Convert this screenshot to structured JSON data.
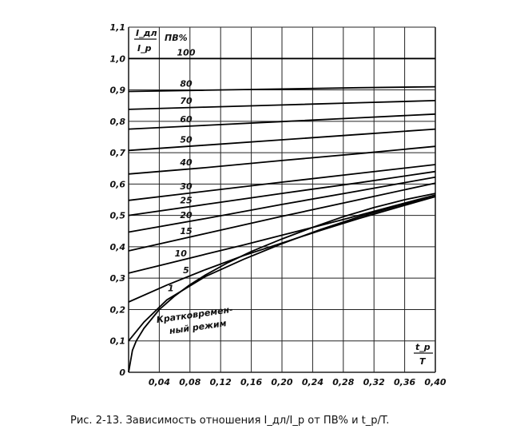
{
  "chart_data": {
    "type": "line",
    "caption": "Рис. 2-13. Зависимость отношения I_дл/I_р от ПВ% и t_р/T.",
    "ylabel": {
      "num": "I_дл",
      "den": "I_р"
    },
    "xlabel": {
      "num": "t_р",
      "den": "T"
    },
    "legend_title": "ПВ%",
    "xlim": [
      0,
      0.4
    ],
    "ylim": [
      0,
      1.1
    ],
    "xticks": [
      "0",
      "0,04",
      "0,08",
      "0,12",
      "0,16",
      "0,20",
      "0,24",
      "0,28",
      "0,32",
      "0,36",
      "0,40"
    ],
    "yticks": [
      "0",
      "0,1",
      "0,2",
      "0,3",
      "0,4",
      "0,5",
      "0,6",
      "0,7",
      "0,8",
      "0,9",
      "1,0",
      "1,1"
    ],
    "grid": true,
    "annotation": [
      "Кратковремен-",
      "ный режим"
    ],
    "series": [
      {
        "name": "100",
        "x": [
          0,
          0.4
        ],
        "y": [
          1.0,
          1.0
        ]
      },
      {
        "name": "80",
        "x": [
          0,
          0.1,
          0.2,
          0.3,
          0.4
        ],
        "y": [
          0.895,
          0.899,
          0.903,
          0.907,
          0.91
        ]
      },
      {
        "name": "70",
        "x": [
          0,
          0.1,
          0.2,
          0.3,
          0.4
        ],
        "y": [
          0.838,
          0.845,
          0.852,
          0.859,
          0.866
        ]
      },
      {
        "name": "60",
        "x": [
          0,
          0.1,
          0.2,
          0.3,
          0.4
        ],
        "y": [
          0.775,
          0.787,
          0.799,
          0.811,
          0.823
        ]
      },
      {
        "name": "50",
        "x": [
          0,
          0.1,
          0.2,
          0.3,
          0.4
        ],
        "y": [
          0.707,
          0.724,
          0.741,
          0.758,
          0.775
        ]
      },
      {
        "name": "40",
        "x": [
          0,
          0.1,
          0.2,
          0.3,
          0.4
        ],
        "y": [
          0.632,
          0.652,
          0.675,
          0.697,
          0.72
        ]
      },
      {
        "name": "30",
        "x": [
          0,
          0.1,
          0.2,
          0.3,
          0.4
        ],
        "y": [
          0.548,
          0.577,
          0.606,
          0.634,
          0.662
        ]
      },
      {
        "name": "25",
        "x": [
          0,
          0.1,
          0.2,
          0.3,
          0.4
        ],
        "y": [
          0.5,
          0.535,
          0.57,
          0.604,
          0.64
        ]
      },
      {
        "name": "20",
        "x": [
          0,
          0.1,
          0.2,
          0.3,
          0.4
        ],
        "y": [
          0.447,
          0.49,
          0.535,
          0.578,
          0.622
        ]
      },
      {
        "name": "15",
        "x": [
          0,
          0.1,
          0.2,
          0.3,
          0.4
        ],
        "y": [
          0.387,
          0.442,
          0.497,
          0.55,
          0.603
        ]
      },
      {
        "name": "10",
        "x": [
          0,
          0.05,
          0.1,
          0.15,
          0.2,
          0.25,
          0.3,
          0.35,
          0.4
        ],
        "y": [
          0.316,
          0.346,
          0.376,
          0.406,
          0.437,
          0.468,
          0.5,
          0.533,
          0.565
        ]
      },
      {
        "name": "5",
        "x": [
          0,
          0.05,
          0.1,
          0.15,
          0.2,
          0.25,
          0.3,
          0.35,
          0.4
        ],
        "y": [
          0.224,
          0.278,
          0.327,
          0.372,
          0.412,
          0.452,
          0.49,
          0.525,
          0.56
        ]
      },
      {
        "name": "1",
        "x": [
          0,
          0.02,
          0.05,
          0.1,
          0.15,
          0.2,
          0.25,
          0.3,
          0.35,
          0.4
        ],
        "y": [
          0.1,
          0.16,
          0.231,
          0.305,
          0.36,
          0.41,
          0.455,
          0.495,
          0.53,
          0.56
        ]
      },
      {
        "name": "",
        "x": [
          0,
          0.005,
          0.01,
          0.02,
          0.04,
          0.06,
          0.08,
          0.1,
          0.13,
          0.16,
          0.2,
          0.24,
          0.28,
          0.32,
          0.36,
          0.4
        ],
        "y": [
          0,
          0.07,
          0.1,
          0.14,
          0.2,
          0.243,
          0.279,
          0.31,
          0.35,
          0.385,
          0.425,
          0.462,
          0.496,
          0.525,
          0.55,
          0.57
        ]
      }
    ]
  }
}
